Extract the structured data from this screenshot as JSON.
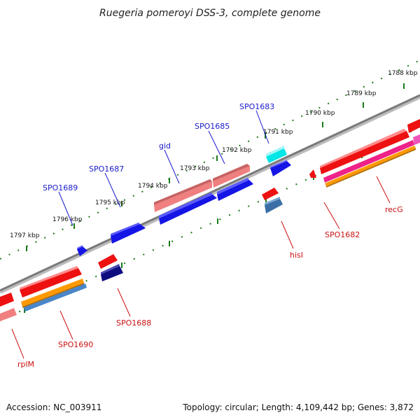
{
  "title": "Ruegeria pomeroyi DSS-3, complete genome",
  "footer": {
    "accession": "Accession: NC_003911",
    "info": "Topology: circular; Length: 4,109,442 bp; Genes: 3,872"
  },
  "colors": {
    "backbone": "#8a8a8a",
    "ticks": "#1a7a1a",
    "label_top": "#1a1acc",
    "label_bottom": "#cc1111"
  },
  "tick_labels": [
    "1788 kbp",
    "1789 kbp",
    "1790 kbp",
    "1791 kbp",
    "1792 kbp",
    "1793 kbp",
    "1794 kbp",
    "1795 kbp",
    "1796 kbp",
    "1797 kbp"
  ],
  "genes_top": [
    "SPO1683",
    "SPO1685",
    "gid",
    "SPO1687",
    "SPO1689"
  ],
  "genes_bottom": [
    "recG",
    "SPO1682",
    "hisI",
    "SPO1688",
    "SPO1690",
    "rplM"
  ]
}
